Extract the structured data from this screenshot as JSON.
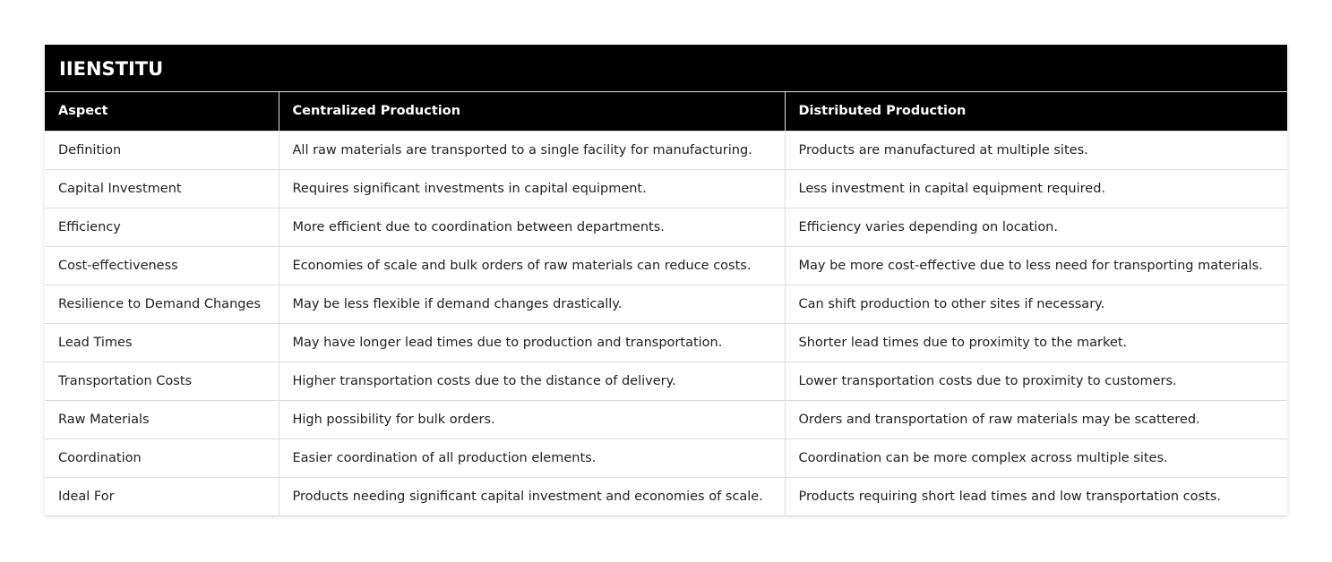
{
  "title": "IIENSTITU",
  "headers": [
    "Aspect",
    "Centralized Production",
    "Distributed Production"
  ],
  "rows": [
    [
      "Definition",
      "All raw materials are transported to a single facility for manufacturing.",
      "Products are manufactured at multiple sites."
    ],
    [
      "Capital Investment",
      "Requires significant investments in capital equipment.",
      "Less investment in capital equipment required."
    ],
    [
      "Efficiency",
      "More efficient due to coordination between departments.",
      "Efficiency varies depending on location."
    ],
    [
      "Cost-effectiveness",
      "Economies of scale and bulk orders of raw materials can reduce costs.",
      "May be more cost-effective due to less need for transporting materials."
    ],
    [
      "Resilience to Demand Changes",
      "May be less flexible if demand changes drastically.",
      "Can shift production to other sites if necessary."
    ],
    [
      "Lead Times",
      "May have longer lead times due to production and transportation.",
      "Shorter lead times due to proximity to the market."
    ],
    [
      "Transportation Costs",
      "Higher transportation costs due to the distance of delivery.",
      "Lower transportation costs due to proximity to customers."
    ],
    [
      "Raw Materials",
      "High possibility for bulk orders.",
      "Orders and transportation of raw materials may be scattered."
    ],
    [
      "Coordination",
      "Easier coordination of all production elements.",
      "Coordination can be more complex across multiple sites."
    ],
    [
      "Ideal For",
      "Products needing significant capital investment and economies of scale.",
      "Products requiring short lead times and low transportation costs."
    ]
  ]
}
